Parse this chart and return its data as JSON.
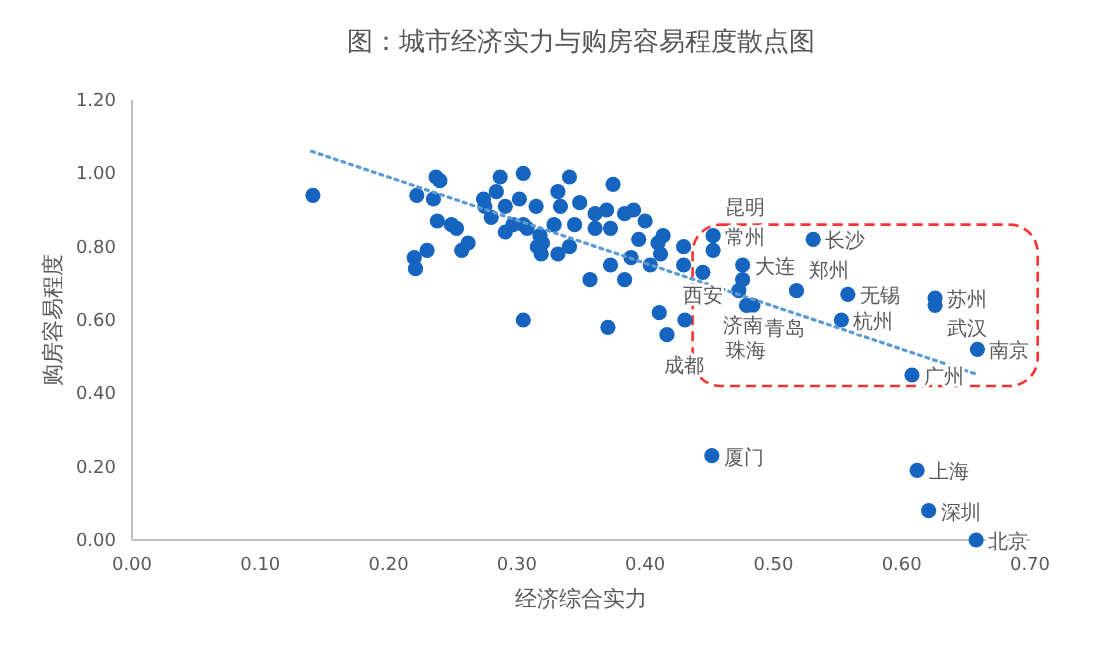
{
  "chart_data": {
    "type": "scatter",
    "title": "图：城市经济实力与购房容易程度散点图",
    "xlabel": "经济综合实力",
    "ylabel": "购房容易程度",
    "xlim": [
      0,
      0.7
    ],
    "ylim": [
      0,
      1.2
    ],
    "xticks": [
      {
        "value": 0,
        "label": "0.00"
      },
      {
        "value": 0.1,
        "label": "0.10"
      },
      {
        "value": 0.2,
        "label": "0.20"
      },
      {
        "value": 0.3,
        "label": "0.30"
      },
      {
        "value": 0.4,
        "label": "0.40"
      },
      {
        "value": 0.5,
        "label": "0.50"
      },
      {
        "value": 0.6,
        "label": "0.60"
      },
      {
        "value": 0.7,
        "label": "0.70"
      }
    ],
    "yticks": [
      {
        "value": 0,
        "label": "0.00"
      },
      {
        "value": 0.2,
        "label": "0.20"
      },
      {
        "value": 0.4,
        "label": "0.40"
      },
      {
        "value": 0.6,
        "label": "0.60"
      },
      {
        "value": 0.8,
        "label": "0.80"
      },
      {
        "value": 1.0,
        "label": "1.00"
      },
      {
        "value": 1.2,
        "label": "1.20"
      }
    ],
    "grid": false,
    "marker": "circle",
    "series": [
      {
        "type": "scatter",
        "color": "#1565c0",
        "x": [
          0.141,
          0.222,
          0.235,
          0.237,
          0.24,
          0.238,
          0.249,
          0.253,
          0.262,
          0.257,
          0.23,
          0.22,
          0.221,
          0.274,
          0.275,
          0.28,
          0.284,
          0.287,
          0.291,
          0.291,
          0.297,
          0.302,
          0.305,
          0.305,
          0.308,
          0.305,
          0.315,
          0.318,
          0.32,
          0.316,
          0.319,
          0.329,
          0.332,
          0.334,
          0.332,
          0.341,
          0.341,
          0.345,
          0.349,
          0.357,
          0.361,
          0.361,
          0.37,
          0.373,
          0.375,
          0.373,
          0.371,
          0.384,
          0.391,
          0.384,
          0.395,
          0.4,
          0.389,
          0.404,
          0.41,
          0.414,
          0.412,
          0.411,
          0.417,
          0.43,
          0.43,
          0.431,
          0.453,
          0.453,
          0.476,
          0.476,
          0.473,
          0.479,
          0.484,
          0.445,
          0.531,
          0.518,
          0.558,
          0.553,
          0.626,
          0.626,
          0.659,
          0.608,
          0.452,
          0.612,
          0.621,
          0.658
        ],
        "values": [
          0.94,
          0.94,
          0.93,
          0.99,
          0.98,
          0.87,
          0.86,
          0.85,
          0.81,
          0.79,
          0.79,
          0.77,
          0.74,
          0.93,
          0.91,
          0.88,
          0.95,
          0.99,
          0.91,
          0.84,
          0.86,
          0.93,
          1.0,
          0.86,
          0.85,
          0.6,
          0.91,
          0.83,
          0.81,
          0.8,
          0.78,
          0.86,
          0.95,
          0.91,
          0.78,
          0.99,
          0.8,
          0.86,
          0.92,
          0.71,
          0.89,
          0.85,
          0.9,
          0.85,
          0.97,
          0.75,
          0.58,
          0.89,
          0.9,
          0.71,
          0.82,
          0.87,
          0.77,
          0.75,
          0.81,
          0.83,
          0.78,
          0.62,
          0.56,
          0.8,
          0.75,
          0.6,
          0.83,
          0.79,
          0.75,
          0.71,
          0.68,
          0.64,
          0.64,
          0.73,
          0.82,
          0.68,
          0.67,
          0.6,
          0.66,
          0.64,
          0.52,
          0.45,
          0.23,
          0.19,
          0.08,
          0.0
        ]
      },
      {
        "type": "line",
        "color": "#5b9bd5",
        "line_style": "dotted",
        "marker": "none",
        "x": [
          0.14,
          0.66
        ],
        "values": [
          1.06,
          0.45
        ]
      }
    ],
    "annotations": [
      {
        "text": "常州",
        "x": 0.453,
        "y": 0.83
      },
      {
        "text": "昆明",
        "x": 0.453,
        "y": 0.79
      },
      {
        "text": "大连",
        "x": 0.476,
        "y": 0.75
      },
      {
        "text": "济南",
        "x": 0.476,
        "y": 0.71
      },
      {
        "text": "青岛",
        "x": 0.484,
        "y": 0.64
      },
      {
        "text": "珠海",
        "x": 0.479,
        "y": 0.64
      },
      {
        "text": "西安",
        "x": 0.445,
        "y": 0.73
      },
      {
        "text": "成都",
        "x": 0.43,
        "y": 0.6
      },
      {
        "text": "长沙",
        "x": 0.531,
        "y": 0.82
      },
      {
        "text": "郑州",
        "x": 0.518,
        "y": 0.68
      },
      {
        "text": "无锡",
        "x": 0.558,
        "y": 0.67
      },
      {
        "text": "杭州",
        "x": 0.553,
        "y": 0.6
      },
      {
        "text": "苏州",
        "x": 0.626,
        "y": 0.66
      },
      {
        "text": "武汉",
        "x": 0.626,
        "y": 0.64
      },
      {
        "text": "南京",
        "x": 0.659,
        "y": 0.52
      },
      {
        "text": "广州",
        "x": 0.608,
        "y": 0.45
      },
      {
        "text": "厦门",
        "x": 0.452,
        "y": 0.23
      },
      {
        "text": "上海",
        "x": 0.612,
        "y": 0.19
      },
      {
        "text": "深圳",
        "x": 0.621,
        "y": 0.08
      },
      {
        "text": "北京",
        "x": 0.658,
        "y": 0.0
      }
    ]
  }
}
